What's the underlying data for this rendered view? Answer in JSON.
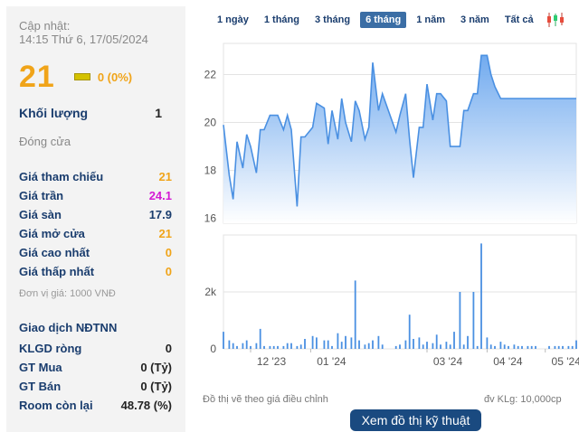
{
  "update": {
    "label": "Cập nhật:",
    "time": "14:15 Thứ 6, 17/05/2024"
  },
  "quote": {
    "price": "21",
    "change": "0 (0%)"
  },
  "volume": {
    "label": "Khối lượng",
    "value": "1"
  },
  "close_label": "Đóng cửa",
  "stats": [
    {
      "label": "Giá tham chiếu",
      "value": "21"
    },
    {
      "label": "Giá trần",
      "value": "24.1"
    },
    {
      "label": "Giá sàn",
      "value": "17.9"
    },
    {
      "label": "Giá mở cửa",
      "value": "21"
    },
    {
      "label": "Giá cao nhất",
      "value": "0"
    },
    {
      "label": "Giá thấp nhất",
      "value": "0"
    }
  ],
  "unit_note": "Đơn vị giá: 1000 VNĐ",
  "foreign": {
    "title": "Giao dịch NĐTNN",
    "rows": [
      {
        "label": "KLGD ròng",
        "value": "0"
      },
      {
        "label": "GT Mua",
        "value": "0 (Tỷ)"
      },
      {
        "label": "GT Bán",
        "value": "0 (Tỷ)"
      },
      {
        "label": "Room còn lại",
        "value": "48.78 (%)"
      }
    ]
  },
  "tabs": [
    "1 ngày",
    "1 tháng",
    "3 tháng",
    "6 tháng",
    "1 năm",
    "3 năm",
    "Tất cả"
  ],
  "active_tab": "6 tháng",
  "icons": {
    "chart_type": "candlestick-icon"
  },
  "colors": {
    "price_line": "#4a90e2",
    "area_top": "#6aa6ee",
    "volume_bar": "#4a90e2",
    "accent": "#1a4a80"
  },
  "footer": {
    "left": "Đồ thị vẽ theo giá điều chỉnh",
    "right": "đv KLg: 10,000cp"
  },
  "tech_button": "Xem đồ thị kỹ thuật",
  "chart_data": [
    {
      "type": "area",
      "title": "",
      "yticks": [
        "22",
        "20",
        "18",
        "16"
      ],
      "ylim": [
        15.8,
        23.3
      ],
      "xlabels": [
        "12 '23",
        "01 '24",
        "03 '24",
        "04 '24",
        "05 '24"
      ],
      "x_label_dates": [
        "2023-12-01",
        "2024-01-01",
        "2024-03-01",
        "2024-04-01",
        "2024-05-01"
      ],
      "xlim": [
        "2023-11-17",
        "2024-05-17"
      ],
      "grid": true,
      "x": [
        "2023-11-17",
        "2023-11-20",
        "2023-11-22",
        "2023-11-24",
        "2023-11-27",
        "2023-11-29",
        "2023-12-01",
        "2023-12-04",
        "2023-12-06",
        "2023-12-08",
        "2023-12-11",
        "2023-12-13",
        "2023-12-15",
        "2023-12-18",
        "2023-12-20",
        "2023-12-22",
        "2023-12-25",
        "2023-12-27",
        "2023-12-29",
        "2024-01-02",
        "2024-01-04",
        "2024-01-08",
        "2024-01-10",
        "2024-01-12",
        "2024-01-15",
        "2024-01-17",
        "2024-01-19",
        "2024-01-22",
        "2024-01-24",
        "2024-01-26",
        "2024-01-29",
        "2024-01-31",
        "2024-02-02",
        "2024-02-05",
        "2024-02-07",
        "2024-02-14",
        "2024-02-16",
        "2024-02-19",
        "2024-02-21",
        "2024-02-23",
        "2024-02-26",
        "2024-02-28",
        "2024-03-01",
        "2024-03-04",
        "2024-03-06",
        "2024-03-08",
        "2024-03-11",
        "2024-03-13",
        "2024-03-15",
        "2024-03-18",
        "2024-03-20",
        "2024-03-22",
        "2024-03-25",
        "2024-03-27",
        "2024-03-29",
        "2024-04-01",
        "2024-04-03",
        "2024-04-05",
        "2024-04-08",
        "2024-04-10",
        "2024-04-12",
        "2024-04-15",
        "2024-04-17",
        "2024-04-19",
        "2024-04-22",
        "2024-04-24",
        "2024-04-26",
        "2024-05-03",
        "2024-05-06",
        "2024-05-08",
        "2024-05-10",
        "2024-05-13",
        "2024-05-15",
        "2024-05-17"
      ],
      "series": [
        {
          "values": [
            19.9,
            17.8,
            16.8,
            19.2,
            18.1,
            19.5,
            19.0,
            17.9,
            19.7,
            19.7,
            20.3,
            20.3,
            20.3,
            19.7,
            20.3,
            19.7,
            16.5,
            19.4,
            19.4,
            19.8,
            20.8,
            20.6,
            19.1,
            20.5,
            19.3,
            21.0,
            20.0,
            19.2,
            20.9,
            20.5,
            19.3,
            19.8,
            22.5,
            20.5,
            21.2,
            19.6,
            20.3,
            21.2,
            19.3,
            17.7,
            19.8,
            19.8,
            21.6,
            20.1,
            21.2,
            21.2,
            20.9,
            19.0,
            19.0,
            19.0,
            20.5,
            20.5,
            21.2,
            21.2,
            22.8,
            22.8,
            22.0,
            21.5,
            21.0,
            21.0,
            21.0,
            21.0,
            21.0,
            21.0,
            21.0,
            21.0,
            21.0,
            21.0,
            21.0,
            21.0,
            21.0,
            21.0,
            21.0,
            21.0
          ]
        }
      ]
    },
    {
      "type": "bar",
      "title": "",
      "yticks": [
        "2k",
        "0"
      ],
      "ylim": [
        0,
        4000
      ],
      "volume_unit": "10,000cp",
      "x": [
        "2023-11-17",
        "2023-11-20",
        "2023-11-22",
        "2023-11-24",
        "2023-11-27",
        "2023-11-29",
        "2023-12-01",
        "2023-12-04",
        "2023-12-06",
        "2023-12-08",
        "2023-12-11",
        "2023-12-13",
        "2023-12-15",
        "2023-12-18",
        "2023-12-20",
        "2023-12-22",
        "2023-12-25",
        "2023-12-27",
        "2023-12-29",
        "2024-01-02",
        "2024-01-04",
        "2024-01-08",
        "2024-01-10",
        "2024-01-12",
        "2024-01-15",
        "2024-01-17",
        "2024-01-19",
        "2024-01-22",
        "2024-01-24",
        "2024-01-26",
        "2024-01-29",
        "2024-01-31",
        "2024-02-02",
        "2024-02-05",
        "2024-02-07",
        "2024-02-14",
        "2024-02-16",
        "2024-02-19",
        "2024-02-21",
        "2024-02-23",
        "2024-02-26",
        "2024-02-28",
        "2024-03-01",
        "2024-03-04",
        "2024-03-06",
        "2024-03-08",
        "2024-03-11",
        "2024-03-13",
        "2024-03-15",
        "2024-03-18",
        "2024-03-20",
        "2024-03-22",
        "2024-03-25",
        "2024-03-27",
        "2024-03-29",
        "2024-04-01",
        "2024-04-03",
        "2024-04-05",
        "2024-04-08",
        "2024-04-10",
        "2024-04-12",
        "2024-04-15",
        "2024-04-17",
        "2024-04-19",
        "2024-04-22",
        "2024-04-24",
        "2024-04-26",
        "2024-05-03",
        "2024-05-06",
        "2024-05-08",
        "2024-05-10",
        "2024-05-13",
        "2024-05-15",
        "2024-05-17"
      ],
      "values": [
        600,
        300,
        200,
        100,
        200,
        300,
        100,
        200,
        700,
        100,
        100,
        100,
        100,
        100,
        200,
        200,
        100,
        150,
        350,
        450,
        400,
        300,
        300,
        100,
        550,
        250,
        450,
        400,
        2400,
        300,
        150,
        200,
        300,
        450,
        150,
        100,
        150,
        300,
        1200,
        350,
        400,
        150,
        250,
        200,
        500,
        150,
        250,
        150,
        600,
        2000,
        150,
        450,
        2000,
        100,
        3700,
        400,
        150,
        100,
        250,
        150,
        100,
        150,
        100,
        100,
        100,
        100,
        100,
        100,
        100,
        100,
        100,
        100,
        100,
        300
      ]
    }
  ]
}
